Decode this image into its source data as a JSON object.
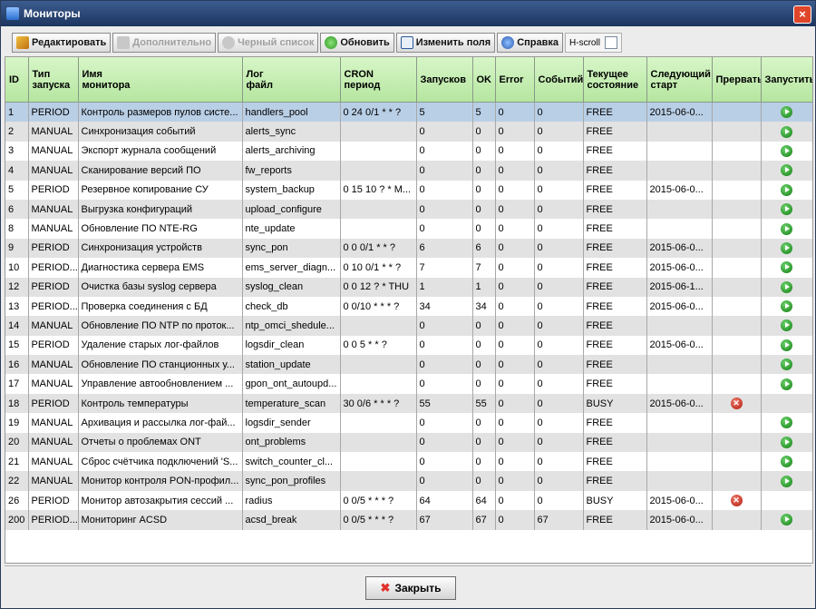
{
  "window": {
    "title": "Мониторы"
  },
  "toolbar": {
    "buttons": [
      "Редактировать",
      "Дополнительно",
      "Черный список",
      "Обновить",
      "Изменить поля",
      "Справка"
    ],
    "hscroll": "H-scroll"
  },
  "table": {
    "columns": [
      "ID",
      "Тип\nзапуска",
      "Имя\nмонитора",
      "Лог\nфайл",
      "CRON\nпериод",
      "Запусков",
      "OK",
      "Error",
      "Событий",
      "Текущее\nсостояние",
      "Следующий\nстарт",
      "Прервать",
      "Запустить"
    ],
    "rows": [
      [
        "1",
        "PERIOD",
        "Контроль размеров пулов систе...",
        "handlers_pool",
        "0 24 0/1 * * ?",
        "5",
        "5",
        "0",
        "0",
        "FREE",
        "2015-06-0..."
      ],
      [
        "2",
        "MANUAL",
        "Синхронизация событий",
        "alerts_sync",
        null,
        "0",
        "0",
        "0",
        "0",
        "FREE",
        null
      ],
      [
        "3",
        "MANUAL",
        "Экспорт журнала сообщений",
        "alerts_archiving",
        null,
        "0",
        "0",
        "0",
        "0",
        "FREE",
        null
      ],
      [
        "4",
        "MANUAL",
        "Сканирование версий ПО",
        "fw_reports",
        null,
        "0",
        "0",
        "0",
        "0",
        "FREE",
        null
      ],
      [
        "5",
        "PERIOD",
        "Резервное копирование СУ",
        "system_backup",
        "0 15 10 ? * M...",
        "0",
        "0",
        "0",
        "0",
        "FREE",
        "2015-06-0..."
      ],
      [
        "6",
        "MANUAL",
        "Выгрузка конфигураций",
        "upload_configure",
        null,
        "0",
        "0",
        "0",
        "0",
        "FREE",
        null
      ],
      [
        "8",
        "MANUAL",
        "Обновление ПО NTE-RG",
        "nte_update",
        null,
        "0",
        "0",
        "0",
        "0",
        "FREE",
        null
      ],
      [
        "9",
        "PERIOD",
        "Синхронизация устройств",
        "sync_pon",
        "0 0 0/1 * * ?",
        "6",
        "6",
        "0",
        "0",
        "FREE",
        "2015-06-0..."
      ],
      [
        "10",
        "PERIOD...",
        "Диагностика сервера EMS",
        "ems_server_diagn...",
        "0 10 0/1 * * ?",
        "7",
        "7",
        "0",
        "0",
        "FREE",
        "2015-06-0..."
      ],
      [
        "12",
        "PERIOD",
        "Очистка базы syslog сервера",
        "syslog_clean",
        "0 0 12 ? * THU",
        "1",
        "1",
        "0",
        "0",
        "FREE",
        "2015-06-1..."
      ],
      [
        "13",
        "PERIOD...",
        "Проверка соединения с БД",
        "check_db",
        "0 0/10 * * * ?",
        "34",
        "34",
        "0",
        "0",
        "FREE",
        "2015-06-0..."
      ],
      [
        "14",
        "MANUAL",
        "Обновление ПО NTP по проток...",
        "ntp_omci_shedule...",
        null,
        "0",
        "0",
        "0",
        "0",
        "FREE",
        null
      ],
      [
        "15",
        "PERIOD",
        "Удаление старых лог-файлов",
        "logsdir_clean",
        "0 0 5 * * ?",
        "0",
        "0",
        "0",
        "0",
        "FREE",
        "2015-06-0..."
      ],
      [
        "16",
        "MANUAL",
        "Обновление ПО станционных у...",
        "station_update",
        null,
        "0",
        "0",
        "0",
        "0",
        "FREE",
        null
      ],
      [
        "17",
        "MANUAL",
        "Управление автообновлением ...",
        "gpon_ont_autoupd...",
        null,
        "0",
        "0",
        "0",
        "0",
        "FREE",
        null
      ],
      [
        "18",
        "PERIOD",
        "Контроль температуры",
        "temperature_scan",
        "30 0/6 * * * ?",
        "55",
        "55",
        "0",
        "0",
        "BUSY",
        "2015-06-0..."
      ],
      [
        "19",
        "MANUAL",
        "Архивация и рассылка лог-фай...",
        "logsdir_sender",
        null,
        "0",
        "0",
        "0",
        "0",
        "FREE",
        null
      ],
      [
        "20",
        "MANUAL",
        "Отчеты о проблемах ONT",
        "ont_problems",
        null,
        "0",
        "0",
        "0",
        "0",
        "FREE",
        null
      ],
      [
        "21",
        "MANUAL",
        "Сброс счётчика подключений 'S...",
        "switch_counter_cl...",
        null,
        "0",
        "0",
        "0",
        "0",
        "FREE",
        null
      ],
      [
        "22",
        "MANUAL",
        "Монитор контроля PON-профил...",
        "sync_pon_profiles",
        null,
        "0",
        "0",
        "0",
        "0",
        "FREE",
        null
      ],
      [
        "26",
        "PERIOD",
        "Монитор автозакрытия сессий ...",
        "radius",
        "0 0/5 * * * ?",
        "64",
        "64",
        "0",
        "0",
        "BUSY",
        "2015-06-0..."
      ],
      [
        "200",
        "PERIOD...",
        "Мониторинг ACSD",
        "acsd_break",
        "0 0/5 * * * ?",
        "67",
        "67",
        "0",
        "67",
        "FREE",
        "2015-06-0..."
      ]
    ]
  },
  "footer": {
    "close": "Закрыть"
  }
}
